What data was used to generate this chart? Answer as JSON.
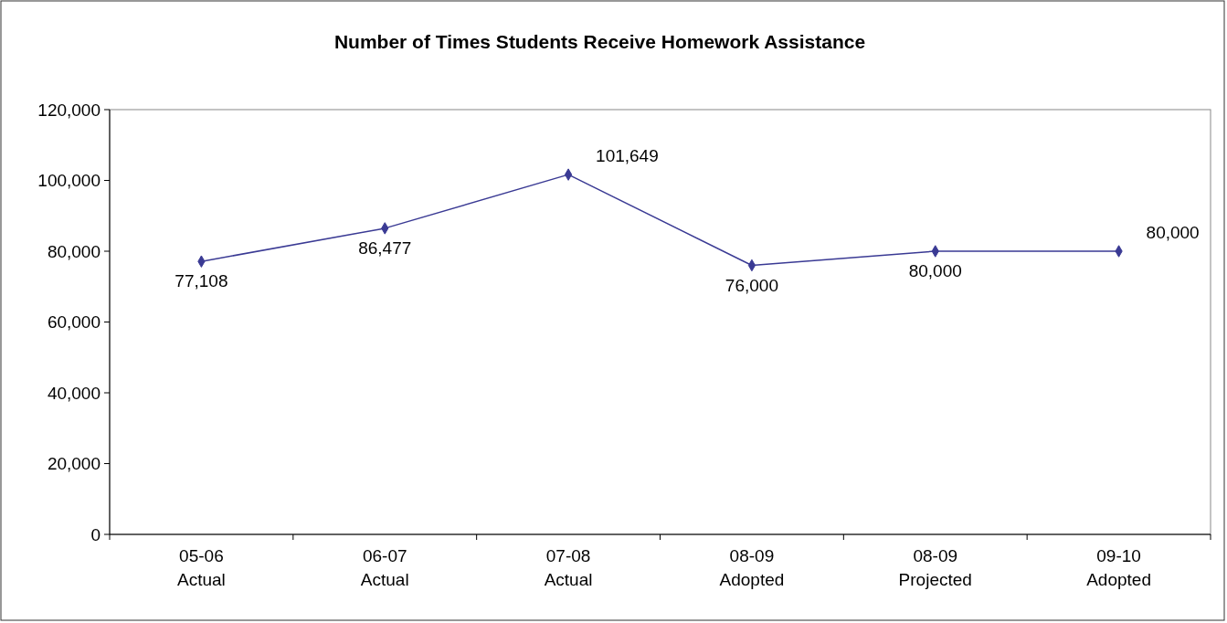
{
  "chart_data": {
    "type": "line",
    "title": "Number of Times Students Receive Homework Assistance",
    "categories": [
      "05-06 Actual",
      "06-07 Actual",
      "07-08 Actual",
      "08-09 Adopted",
      "08-09 Projected",
      "09-10 Adopted"
    ],
    "series": [
      {
        "color": "#3a3a94",
        "values": [
          77108,
          86477,
          101649,
          76000,
          80000,
          80000
        ],
        "value_labels": [
          "77,108",
          "86,477",
          "101,649",
          "76,000",
          "80,000",
          "80,000"
        ]
      }
    ],
    "ylim": [
      0,
      120000
    ],
    "yticks": [
      {
        "value": 0,
        "label": "0"
      },
      {
        "value": 20000,
        "label": "20,000"
      },
      {
        "value": 40000,
        "label": "40,000"
      },
      {
        "value": 60000,
        "label": "60,000"
      },
      {
        "value": 80000,
        "label": "80,000"
      },
      {
        "value": 100000,
        "label": "100,000"
      },
      {
        "value": 120000,
        "label": "120,000"
      }
    ],
    "marker": "diamond",
    "line_style": "solid",
    "grid": false
  }
}
